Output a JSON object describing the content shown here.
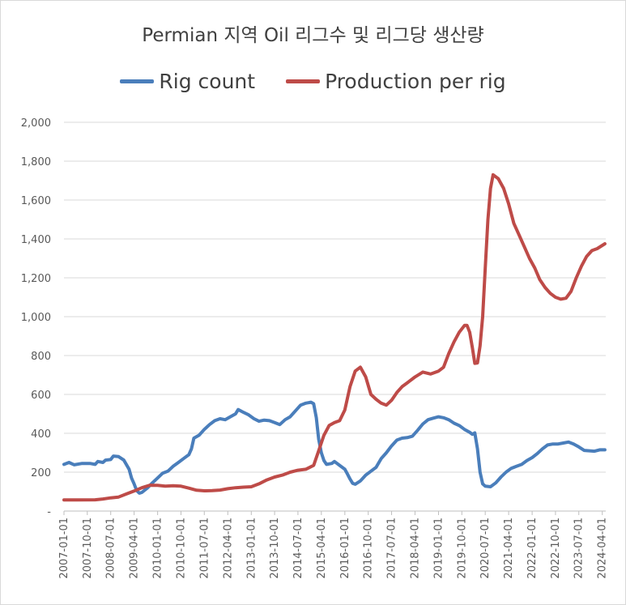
{
  "chart_data": {
    "type": "line",
    "title": "Permian 지역 Oil 리그수 및 리그당 생산량",
    "ylim": [
      0,
      2000
    ],
    "y_ticks": [
      "-",
      "200",
      "400",
      "600",
      "800",
      "1,000",
      "1,200",
      "1,400",
      "1,600",
      "1,800",
      "2,000"
    ],
    "x_tick_labels": [
      "2007-01-01",
      "2007-10-01",
      "2008-07-01",
      "2009-04-01",
      "2010-01-01",
      "2010-10-01",
      "2011-07-01",
      "2012-04-01",
      "2013-01-01",
      "2013-10-01",
      "2014-07-01",
      "2015-04-01",
      "2016-01-01",
      "2016-10-01",
      "2017-07-01",
      "2018-04-01",
      "2019-01-01",
      "2019-10-01",
      "2020-07-01",
      "2021-04-01",
      "2022-01-01",
      "2022-10-01",
      "2023-07-01",
      "2024-04-01"
    ],
    "grid": true,
    "legend_position": "top",
    "series": [
      {
        "name": "Rig count",
        "color": "#4a7ebb",
        "points": [
          [
            "2007-01-01",
            240
          ],
          [
            "2007-03-01",
            250
          ],
          [
            "2007-05-01",
            238
          ],
          [
            "2007-08-01",
            245
          ],
          [
            "2007-11-01",
            245
          ],
          [
            "2008-01-01",
            240
          ],
          [
            "2008-02-01",
            255
          ],
          [
            "2008-04-01",
            250
          ],
          [
            "2008-05-01",
            262
          ],
          [
            "2008-07-01",
            265
          ],
          [
            "2008-08-01",
            283
          ],
          [
            "2008-10-01",
            280
          ],
          [
            "2008-12-01",
            262
          ],
          [
            "2009-02-01",
            215
          ],
          [
            "2009-03-01",
            170
          ],
          [
            "2009-04-01",
            140
          ],
          [
            "2009-05-01",
            105
          ],
          [
            "2009-06-01",
            92
          ],
          [
            "2009-07-01",
            96
          ],
          [
            "2009-09-01",
            118
          ],
          [
            "2009-11-01",
            145
          ],
          [
            "2010-01-01",
            170
          ],
          [
            "2010-03-01",
            195
          ],
          [
            "2010-05-01",
            205
          ],
          [
            "2010-07-01",
            230
          ],
          [
            "2010-09-01",
            250
          ],
          [
            "2010-11-01",
            270
          ],
          [
            "2011-01-01",
            290
          ],
          [
            "2011-02-01",
            320
          ],
          [
            "2011-03-01",
            375
          ],
          [
            "2011-05-01",
            390
          ],
          [
            "2011-07-01",
            420
          ],
          [
            "2011-09-01",
            445
          ],
          [
            "2011-11-01",
            465
          ],
          [
            "2012-01-01",
            475
          ],
          [
            "2012-03-01",
            470
          ],
          [
            "2012-05-01",
            485
          ],
          [
            "2012-07-01",
            500
          ],
          [
            "2012-08-01",
            522
          ],
          [
            "2012-10-01",
            508
          ],
          [
            "2012-12-01",
            495
          ],
          [
            "2013-02-01",
            475
          ],
          [
            "2013-04-01",
            462
          ],
          [
            "2013-06-01",
            468
          ],
          [
            "2013-08-01",
            465
          ],
          [
            "2013-10-01",
            455
          ],
          [
            "2013-12-01",
            445
          ],
          [
            "2014-02-01",
            470
          ],
          [
            "2014-04-01",
            485
          ],
          [
            "2014-06-01",
            515
          ],
          [
            "2014-08-01",
            545
          ],
          [
            "2014-10-01",
            555
          ],
          [
            "2014-12-01",
            560
          ],
          [
            "2015-01-01",
            552
          ],
          [
            "2015-02-01",
            480
          ],
          [
            "2015-03-01",
            370
          ],
          [
            "2015-04-01",
            300
          ],
          [
            "2015-05-01",
            260
          ],
          [
            "2015-06-01",
            240
          ],
          [
            "2015-08-01",
            245
          ],
          [
            "2015-09-01",
            255
          ],
          [
            "2015-11-01",
            235
          ],
          [
            "2016-01-01",
            215
          ],
          [
            "2016-02-01",
            190
          ],
          [
            "2016-03-01",
            165
          ],
          [
            "2016-04-01",
            143
          ],
          [
            "2016-05-01",
            138
          ],
          [
            "2016-07-01",
            155
          ],
          [
            "2016-09-01",
            185
          ],
          [
            "2016-11-01",
            205
          ],
          [
            "2017-01-01",
            225
          ],
          [
            "2017-03-01",
            270
          ],
          [
            "2017-05-01",
            300
          ],
          [
            "2017-07-01",
            335
          ],
          [
            "2017-09-01",
            365
          ],
          [
            "2017-11-01",
            375
          ],
          [
            "2018-01-01",
            378
          ],
          [
            "2018-03-01",
            385
          ],
          [
            "2018-05-01",
            415
          ],
          [
            "2018-07-01",
            448
          ],
          [
            "2018-09-01",
            470
          ],
          [
            "2018-11-01",
            478
          ],
          [
            "2019-01-01",
            485
          ],
          [
            "2019-03-01",
            480
          ],
          [
            "2019-05-01",
            470
          ],
          [
            "2019-07-01",
            452
          ],
          [
            "2019-09-01",
            440
          ],
          [
            "2019-11-01",
            420
          ],
          [
            "2020-01-01",
            405
          ],
          [
            "2020-02-01",
            395
          ],
          [
            "2020-03-01",
            402
          ],
          [
            "2020-04-01",
            320
          ],
          [
            "2020-05-01",
            200
          ],
          [
            "2020-06-01",
            140
          ],
          [
            "2020-07-01",
            128
          ],
          [
            "2020-09-01",
            125
          ],
          [
            "2020-11-01",
            145
          ],
          [
            "2021-01-01",
            175
          ],
          [
            "2021-03-01",
            200
          ],
          [
            "2021-05-01",
            220
          ],
          [
            "2021-07-01",
            230
          ],
          [
            "2021-09-01",
            240
          ],
          [
            "2021-11-01",
            260
          ],
          [
            "2022-01-01",
            275
          ],
          [
            "2022-03-01",
            295
          ],
          [
            "2022-05-01",
            320
          ],
          [
            "2022-07-01",
            340
          ],
          [
            "2022-09-01",
            345
          ],
          [
            "2022-11-01",
            345
          ],
          [
            "2023-01-01",
            350
          ],
          [
            "2023-03-01",
            355
          ],
          [
            "2023-05-01",
            345
          ],
          [
            "2023-07-01",
            330
          ],
          [
            "2023-09-01",
            312
          ],
          [
            "2023-11-01",
            310
          ],
          [
            "2024-01-01",
            308
          ],
          [
            "2024-03-01",
            315
          ],
          [
            "2024-05-01",
            315
          ]
        ]
      },
      {
        "name": "Production per rig",
        "color": "#be4b48",
        "points": [
          [
            "2007-01-01",
            57
          ],
          [
            "2007-06-01",
            57
          ],
          [
            "2008-01-01",
            58
          ],
          [
            "2008-04-01",
            62
          ],
          [
            "2008-07-01",
            68
          ],
          [
            "2008-10-01",
            72
          ],
          [
            "2009-01-01",
            88
          ],
          [
            "2009-04-01",
            103
          ],
          [
            "2009-07-01",
            120
          ],
          [
            "2009-10-01",
            133
          ],
          [
            "2010-01-01",
            132
          ],
          [
            "2010-04-01",
            128
          ],
          [
            "2010-07-01",
            130
          ],
          [
            "2010-10-01",
            128
          ],
          [
            "2011-01-01",
            118
          ],
          [
            "2011-04-01",
            107
          ],
          [
            "2011-07-01",
            104
          ],
          [
            "2011-10-01",
            105
          ],
          [
            "2012-01-01",
            108
          ],
          [
            "2012-04-01",
            115
          ],
          [
            "2012-07-01",
            120
          ],
          [
            "2012-10-01",
            123
          ],
          [
            "2013-01-01",
            125
          ],
          [
            "2013-04-01",
            140
          ],
          [
            "2013-07-01",
            160
          ],
          [
            "2013-10-01",
            175
          ],
          [
            "2014-01-01",
            185
          ],
          [
            "2014-04-01",
            200
          ],
          [
            "2014-07-01",
            210
          ],
          [
            "2014-10-01",
            215
          ],
          [
            "2015-01-01",
            235
          ],
          [
            "2015-03-01",
            310
          ],
          [
            "2015-05-01",
            390
          ],
          [
            "2015-07-01",
            440
          ],
          [
            "2015-09-01",
            455
          ],
          [
            "2015-11-01",
            465
          ],
          [
            "2016-01-01",
            520
          ],
          [
            "2016-03-01",
            640
          ],
          [
            "2016-05-01",
            720
          ],
          [
            "2016-07-01",
            740
          ],
          [
            "2016-09-01",
            690
          ],
          [
            "2016-11-01",
            600
          ],
          [
            "2017-01-01",
            575
          ],
          [
            "2017-03-01",
            555
          ],
          [
            "2017-05-01",
            545
          ],
          [
            "2017-07-01",
            570
          ],
          [
            "2017-09-01",
            610
          ],
          [
            "2017-11-01",
            640
          ],
          [
            "2018-01-01",
            660
          ],
          [
            "2018-04-01",
            690
          ],
          [
            "2018-07-01",
            715
          ],
          [
            "2018-10-01",
            705
          ],
          [
            "2019-01-01",
            720
          ],
          [
            "2019-03-01",
            740
          ],
          [
            "2019-05-01",
            810
          ],
          [
            "2019-07-01",
            870
          ],
          [
            "2019-09-01",
            920
          ],
          [
            "2019-11-01",
            955
          ],
          [
            "2019-12-01",
            955
          ],
          [
            "2020-01-01",
            920
          ],
          [
            "2020-02-01",
            840
          ],
          [
            "2020-03-01",
            760
          ],
          [
            "2020-04-01",
            762
          ],
          [
            "2020-05-01",
            850
          ],
          [
            "2020-06-01",
            1000
          ],
          [
            "2020-07-01",
            1250
          ],
          [
            "2020-08-01",
            1500
          ],
          [
            "2020-09-01",
            1660
          ],
          [
            "2020-10-01",
            1730
          ],
          [
            "2020-12-01",
            1710
          ],
          [
            "2021-02-01",
            1660
          ],
          [
            "2021-04-01",
            1580
          ],
          [
            "2021-06-01",
            1480
          ],
          [
            "2021-08-01",
            1420
          ],
          [
            "2021-10-01",
            1360
          ],
          [
            "2021-12-01",
            1300
          ],
          [
            "2022-02-01",
            1250
          ],
          [
            "2022-04-01",
            1190
          ],
          [
            "2022-06-01",
            1150
          ],
          [
            "2022-08-01",
            1120
          ],
          [
            "2022-10-01",
            1100
          ],
          [
            "2022-12-01",
            1090
          ],
          [
            "2023-02-01",
            1095
          ],
          [
            "2023-04-01",
            1130
          ],
          [
            "2023-06-01",
            1200
          ],
          [
            "2023-08-01",
            1260
          ],
          [
            "2023-10-01",
            1310
          ],
          [
            "2023-12-01",
            1340
          ],
          [
            "2024-02-01",
            1350
          ],
          [
            "2024-05-01",
            1375
          ]
        ]
      }
    ]
  }
}
